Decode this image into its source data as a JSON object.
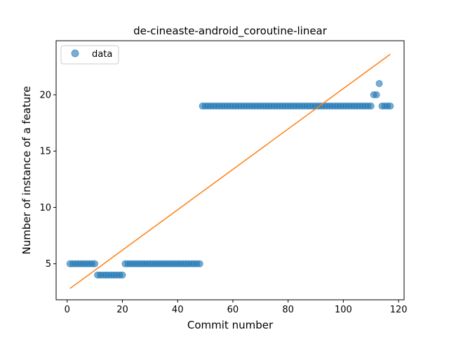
{
  "chart_data": {
    "type": "scatter",
    "title": "de-cineaste-android_coroutine-linear",
    "xlabel": "Commit number",
    "ylabel": "Number of instance of a feature",
    "xlim": [
      -4,
      122
    ],
    "ylim": [
      1.8,
      24.8
    ],
    "xticks": [
      0,
      20,
      40,
      60,
      80,
      100,
      120
    ],
    "yticks": [
      5,
      10,
      15,
      20
    ],
    "grid": false,
    "legend": {
      "placement": "top-left",
      "entries": [
        "data"
      ]
    },
    "colors": {
      "data": "#1f77b4",
      "fit": "#ff7f0e"
    },
    "series": [
      {
        "name": "data",
        "kind": "scatter",
        "x": [
          1,
          2,
          3,
          4,
          5,
          6,
          7,
          8,
          9,
          10,
          11,
          12,
          13,
          14,
          15,
          16,
          17,
          18,
          19,
          20,
          21,
          22,
          23,
          24,
          25,
          26,
          27,
          28,
          29,
          30,
          31,
          32,
          33,
          34,
          35,
          36,
          37,
          38,
          39,
          40,
          41,
          42,
          43,
          44,
          45,
          46,
          47,
          48,
          49,
          50,
          51,
          52,
          53,
          54,
          55,
          56,
          57,
          58,
          59,
          60,
          61,
          62,
          63,
          64,
          65,
          66,
          67,
          68,
          69,
          70,
          71,
          72,
          73,
          74,
          75,
          76,
          77,
          78,
          79,
          80,
          81,
          82,
          83,
          84,
          85,
          86,
          87,
          88,
          89,
          90,
          91,
          92,
          93,
          94,
          95,
          96,
          97,
          98,
          99,
          100,
          101,
          102,
          103,
          104,
          105,
          106,
          107,
          108,
          109,
          110,
          111,
          112,
          113,
          114,
          115,
          116,
          117
        ],
        "y": [
          5,
          5,
          5,
          5,
          5,
          5,
          5,
          5,
          5,
          5,
          4,
          4,
          4,
          4,
          4,
          4,
          4,
          4,
          4,
          4,
          5,
          5,
          5,
          5,
          5,
          5,
          5,
          5,
          5,
          5,
          5,
          5,
          5,
          5,
          5,
          5,
          5,
          5,
          5,
          5,
          5,
          5,
          5,
          5,
          5,
          5,
          5,
          5,
          19,
          19,
          19,
          19,
          19,
          19,
          19,
          19,
          19,
          19,
          19,
          19,
          19,
          19,
          19,
          19,
          19,
          19,
          19,
          19,
          19,
          19,
          19,
          19,
          19,
          19,
          19,
          19,
          19,
          19,
          19,
          19,
          19,
          19,
          19,
          19,
          19,
          19,
          19,
          19,
          19,
          19,
          19,
          19,
          19,
          19,
          19,
          19,
          19,
          19,
          19,
          19,
          19,
          19,
          19,
          19,
          19,
          19,
          19,
          19,
          19,
          19,
          20,
          20,
          21,
          19,
          19,
          19,
          19
        ]
      },
      {
        "kind": "line",
        "x": [
          1,
          117
        ],
        "y": [
          2.8,
          23.6
        ]
      }
    ]
  }
}
